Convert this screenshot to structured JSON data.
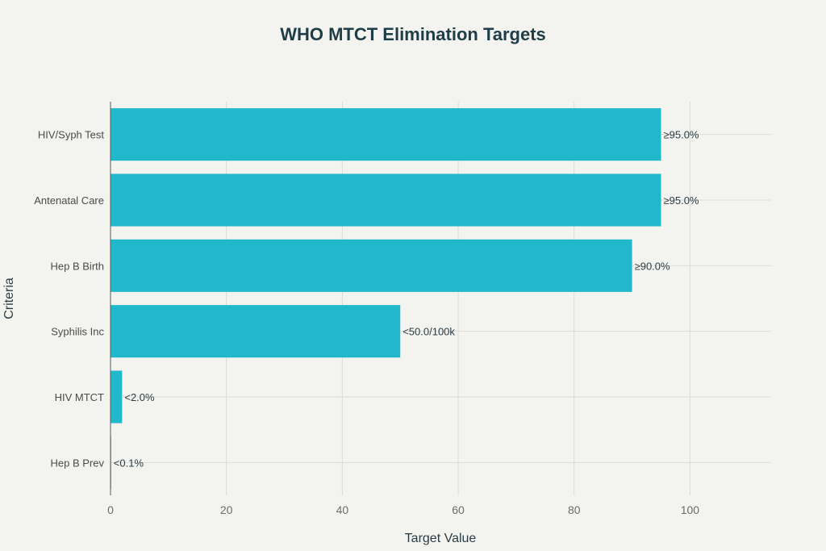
{
  "chart_data": {
    "type": "bar",
    "orientation": "horizontal",
    "title": "WHO MTCT Elimination Targets",
    "xlabel": "Target Value",
    "ylabel": "Criteria",
    "categories": [
      "HIV/Syph Test",
      "Antenatal Care",
      "Hep B Birth",
      "Syphilis Inc",
      "HIV MTCT",
      "Hep B Prev"
    ],
    "values": [
      95,
      95,
      90,
      50,
      2,
      0.1
    ],
    "data_labels": [
      "≥95.0%",
      "≥95.0%",
      "≥90.0%",
      "<50.0/100k",
      "<2.0%",
      "<0.1%"
    ],
    "xlim": [
      0,
      114
    ],
    "x_ticks": [
      0,
      20,
      40,
      60,
      80,
      100
    ],
    "grid": true,
    "colors": {
      "bar": "#22b8cc"
    }
  }
}
